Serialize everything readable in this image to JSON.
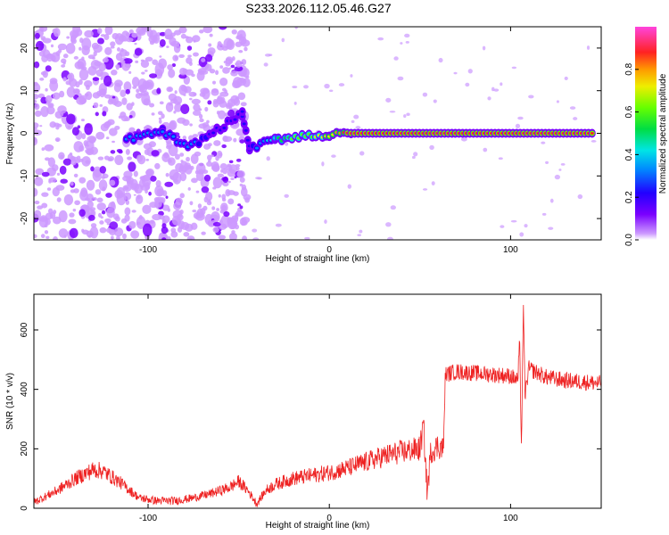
{
  "title": "S233.2026.112.05.46.G27",
  "chart_data": [
    {
      "type": "heatmap",
      "xlabel": "Height of straight line (km)",
      "ylabel": "Frequency (Hz)",
      "xlim": [
        -163,
        150
      ],
      "ylim": [
        -25,
        25
      ],
      "xticks": [
        -100,
        0,
        100
      ],
      "yticks": [
        -20,
        -10,
        0,
        10,
        20
      ],
      "colorbar": {
        "label": "Normalized spectral amplitude",
        "range": [
          0,
          1
        ],
        "ticks": [
          "0.0",
          "0.2",
          "0.4",
          "0.6",
          "0.8"
        ]
      },
      "ridge": [
        {
          "x": -112,
          "y": -1.5,
          "amp": 0.35
        },
        {
          "x": -92,
          "y": 0.5,
          "amp": 0.4
        },
        {
          "x": -78,
          "y": -3.5,
          "amp": 0.35
        },
        {
          "x": -48,
          "y": 4.5,
          "amp": 0.25
        },
        {
          "x": -44,
          "y": -3.5,
          "amp": 0.3
        },
        {
          "x": -30,
          "y": -1.5,
          "amp": 0.5
        },
        {
          "x": -15,
          "y": -0.5,
          "amp": 0.7
        },
        {
          "x": 0,
          "y": -0.5,
          "amp": 0.75
        },
        {
          "x": 12,
          "y": 0,
          "amp": 0.95
        },
        {
          "x": 145,
          "y": 0,
          "amp": 0.95
        }
      ]
    },
    {
      "type": "line",
      "xlabel": "Height of straight line (km)",
      "ylabel": "SNR (10 * v/v)",
      "xlim": [
        -163,
        150
      ],
      "ylim": [
        0,
        720
      ],
      "xticks": [
        -100,
        0,
        100
      ],
      "yticks": [
        0,
        200,
        400,
        600
      ],
      "series": [
        {
          "color": "#ee2222",
          "x": [
            -163,
            -150,
            -140,
            -130,
            -125,
            -115,
            -105,
            -95,
            -85,
            -75,
            -65,
            -55,
            -50,
            -45,
            -40,
            -35,
            -30,
            -20,
            -10,
            0,
            10,
            20,
            30,
            40,
            50,
            52,
            54,
            56,
            60,
            63,
            64,
            70,
            80,
            90,
            100,
            104,
            105,
            106,
            107,
            108,
            110,
            120,
            130,
            140,
            150
          ],
          "y": [
            20,
            60,
            100,
            130,
            125,
            85,
            35,
            25,
            25,
            35,
            50,
            70,
            90,
            60,
            15,
            60,
            80,
            100,
            110,
            120,
            135,
            155,
            175,
            190,
            200,
            280,
            50,
            190,
            210,
            200,
            450,
            460,
            455,
            450,
            445,
            430,
            560,
            200,
            680,
            380,
            470,
            440,
            430,
            425,
            420
          ]
        }
      ]
    }
  ]
}
